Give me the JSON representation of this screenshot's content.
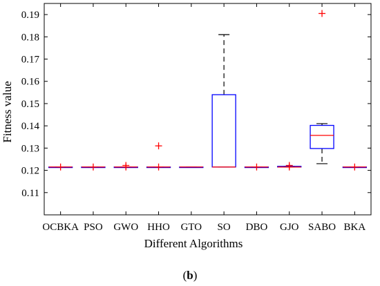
{
  "chart_data": {
    "type": "box",
    "xlabel": "Different Algorithms",
    "ylabel": "Fitness value",
    "panel_label": "b",
    "ylim": [
      0.1,
      0.195
    ],
    "yticks": [
      0.11,
      0.12,
      0.13,
      0.14,
      0.15,
      0.16,
      0.17,
      0.18,
      0.19
    ],
    "grid": false,
    "colors": {
      "box": "#0000ff",
      "median": "#ff0000",
      "outlier": "#ff0000",
      "whisker": "#000000"
    },
    "categories": [
      "OCBKA",
      "PSO",
      "GWO",
      "HHO",
      "GTO",
      "SO",
      "DBO",
      "GJO",
      "SABO",
      "BKA"
    ],
    "boxes": [
      {
        "name": "OCBKA",
        "whisker_low": 0.1215,
        "q1": 0.1215,
        "median": 0.1215,
        "q3": 0.1215,
        "whisker_high": 0.1215,
        "outliers": [
          0.1215
        ]
      },
      {
        "name": "PSO",
        "whisker_low": 0.1215,
        "q1": 0.1215,
        "median": 0.1215,
        "q3": 0.1215,
        "whisker_high": 0.1215,
        "outliers": [
          0.1215
        ]
      },
      {
        "name": "GWO",
        "whisker_low": 0.1215,
        "q1": 0.1215,
        "median": 0.1215,
        "q3": 0.1215,
        "whisker_high": 0.1215,
        "outliers": [
          0.1215,
          0.1222
        ]
      },
      {
        "name": "HHO",
        "whisker_low": 0.1215,
        "q1": 0.1215,
        "median": 0.1215,
        "q3": 0.1215,
        "whisker_high": 0.1215,
        "outliers": [
          0.1215,
          0.131
        ]
      },
      {
        "name": "GTO",
        "whisker_low": 0.1215,
        "q1": 0.1215,
        "median": 0.1215,
        "q3": 0.1215,
        "whisker_high": 0.1215,
        "outliers": []
      },
      {
        "name": "SO",
        "whisker_low": 0.1215,
        "q1": 0.1215,
        "median": 0.1215,
        "q3": 0.154,
        "whisker_high": 0.181,
        "outliers": []
      },
      {
        "name": "DBO",
        "whisker_low": 0.1215,
        "q1": 0.1215,
        "median": 0.1215,
        "q3": 0.1215,
        "whisker_high": 0.1215,
        "outliers": [
          0.1215
        ]
      },
      {
        "name": "GJO",
        "whisker_low": 0.1215,
        "q1": 0.1215,
        "median": 0.1215,
        "q3": 0.1218,
        "whisker_high": 0.1218,
        "outliers": [
          0.1215,
          0.1222
        ]
      },
      {
        "name": "SABO",
        "whisker_low": 0.123,
        "q1": 0.1298,
        "median": 0.1357,
        "q3": 0.1402,
        "whisker_high": 0.141,
        "outliers": [
          0.1905
        ]
      },
      {
        "name": "BKA",
        "whisker_low": 0.1215,
        "q1": 0.1215,
        "median": 0.1215,
        "q3": 0.1215,
        "whisker_high": 0.1215,
        "outliers": [
          0.1215
        ]
      }
    ]
  }
}
